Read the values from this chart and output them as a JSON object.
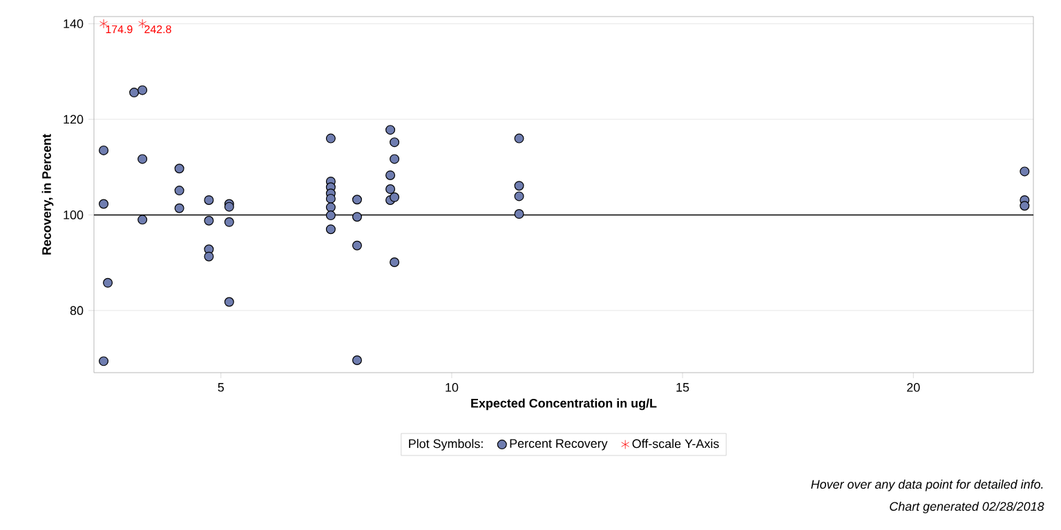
{
  "chart_data": {
    "type": "scatter",
    "xlabel": "Expected Concentration in ug/L",
    "ylabel": "Recovery, in Percent",
    "legend_title": "Plot Symbols:",
    "legend": "bottom",
    "grid": "y",
    "xlim": [
      2.25,
      22.6
    ],
    "ylim": [
      67,
      141.5
    ],
    "xticks": [
      5,
      10,
      15,
      20
    ],
    "yticks": [
      80,
      100,
      120,
      140
    ],
    "series": [
      {
        "name": "Percent Recovery",
        "color": "#6f7db0",
        "marker": "circle",
        "x": [
          2.46,
          2.46,
          2.55,
          2.46,
          3.12,
          3.3,
          3.3,
          3.3,
          4.1,
          4.1,
          4.1,
          4.74,
          4.74,
          4.74,
          4.74,
          5.18,
          5.18,
          5.18,
          5.18,
          7.38,
          7.38,
          7.38,
          7.38,
          7.38,
          7.38,
          7.38,
          7.38,
          7.95,
          7.95,
          7.95,
          7.95,
          8.67,
          8.67,
          8.67,
          8.67,
          8.76,
          8.76,
          8.76,
          8.76,
          11.46,
          11.46,
          11.46,
          11.46,
          22.41,
          22.41,
          22.41
        ],
        "values": [
          113.5,
          102.3,
          85.8,
          69.4,
          125.6,
          126.1,
          111.7,
          99.0,
          109.7,
          105.1,
          101.4,
          103.1,
          98.8,
          92.8,
          91.3,
          102.3,
          101.7,
          98.5,
          81.8,
          116.0,
          107.0,
          105.8,
          104.5,
          103.4,
          101.6,
          99.9,
          97.0,
          103.2,
          99.6,
          93.6,
          69.6,
          117.8,
          108.3,
          105.4,
          103.1,
          115.2,
          111.7,
          103.7,
          90.1,
          116.0,
          106.1,
          103.9,
          100.2,
          109.1,
          103.1,
          101.9
        ]
      },
      {
        "name": "Off-scale Y-Axis",
        "color": "#ff0000",
        "marker": "cross",
        "x": [
          2.46,
          3.3
        ],
        "values": [
          140,
          140
        ]
      }
    ],
    "ref_lines": [
      {
        "axis": "y",
        "value": 100,
        "color": "#000000"
      }
    ],
    "annotations": [
      {
        "text": "174.9",
        "x": 2.46,
        "y": 140
      },
      {
        "text": "242.8",
        "x": 3.3,
        "y": 140
      },
      "Hover over any data point for detailed info.",
      "Chart generated 02/28/2018"
    ]
  }
}
